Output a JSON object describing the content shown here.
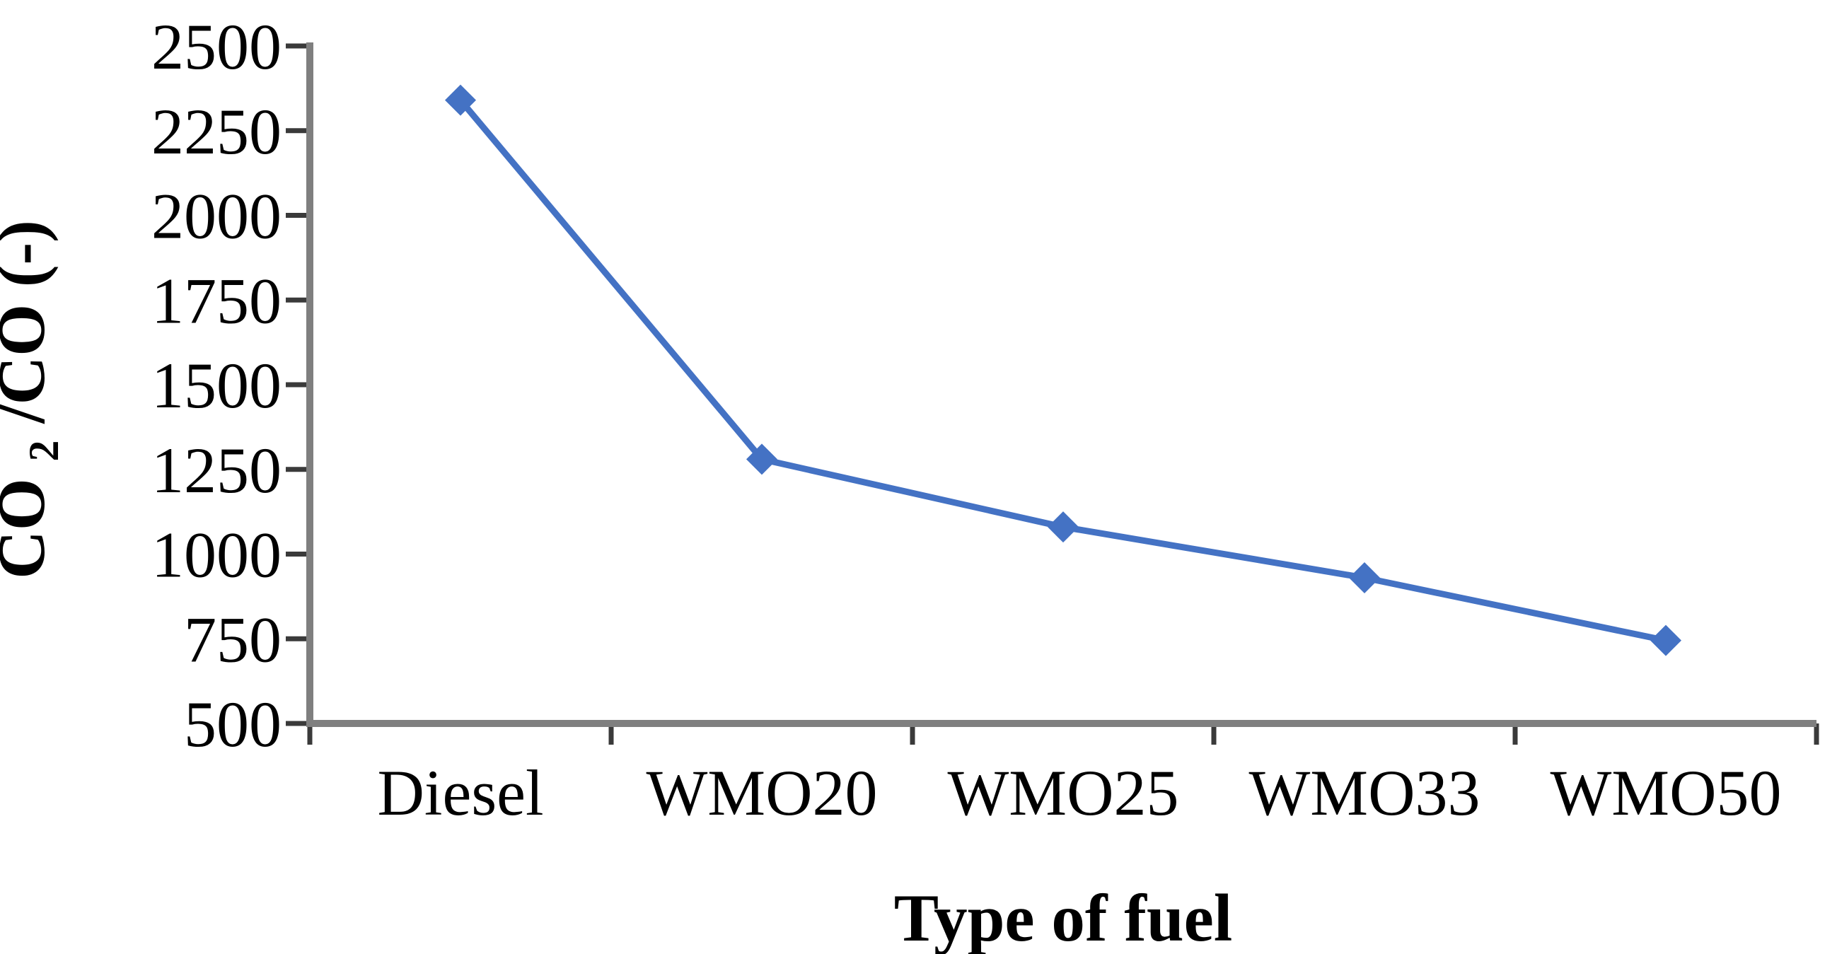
{
  "page": {
    "background": "#ffffff"
  },
  "chart_data": {
    "type": "line",
    "title": "",
    "categories": [
      "Diesel",
      "WMO20",
      "WMO25",
      "WMO33",
      "WMO50"
    ],
    "series": [
      {
        "name": "CO2/CO",
        "values": [
          2340,
          1280,
          1080,
          930,
          745
        ]
      }
    ],
    "xlabel": "Type of fuel",
    "ylabel": "CO2/CO (-)",
    "ylabel_parts": {
      "base1": "CO",
      "sub": "2",
      "base2": "/CO (-)"
    },
    "ylim": [
      500,
      2500
    ],
    "ytick_step": 250,
    "ytick_labels": [
      "500",
      "750",
      "1000",
      "1250",
      "1500",
      "1750",
      "2000",
      "2250",
      "2500"
    ],
    "grid": false,
    "legend": "none",
    "marker": "diamond",
    "colors": {
      "line": "#4472C4",
      "marker": "#4472C4",
      "axis_line": "#7f7f7f",
      "tick_mark": "#3a3a3a",
      "text": "#000000"
    }
  }
}
